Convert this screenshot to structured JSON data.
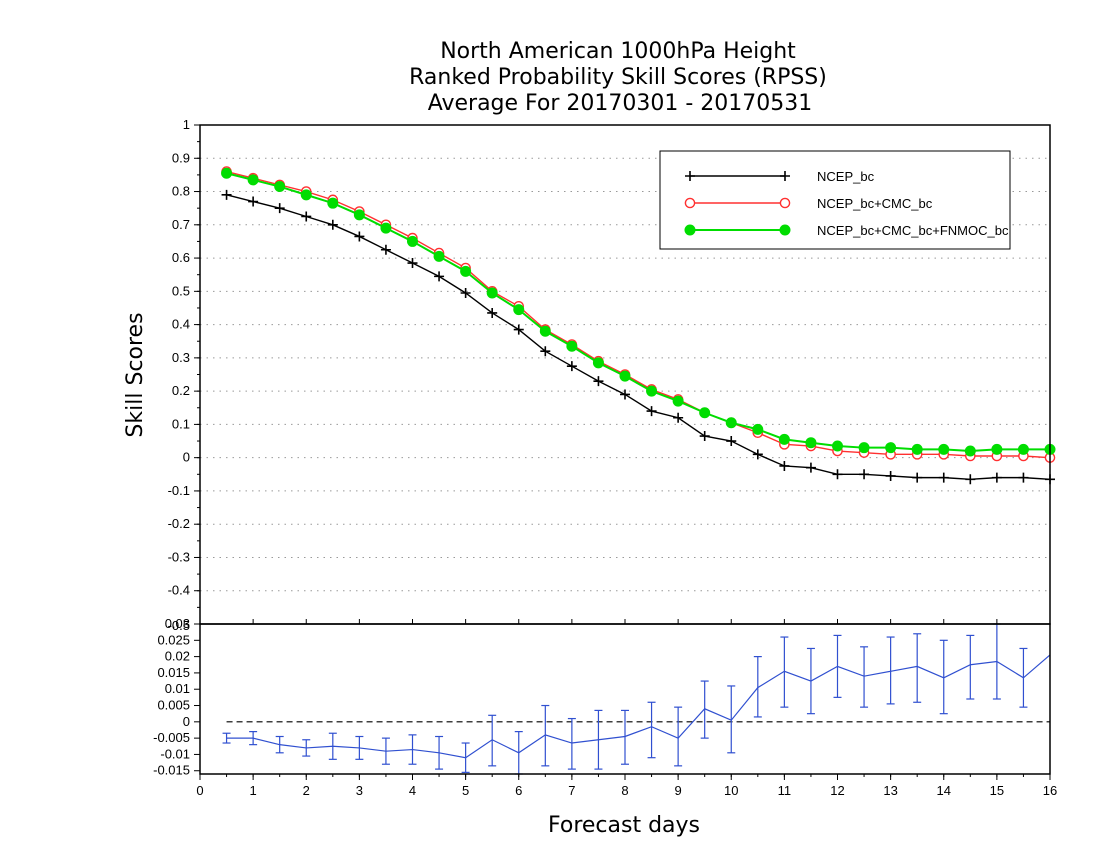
{
  "chart_data": [
    {
      "panel": "main",
      "type": "line",
      "title": [
        "North American 1000hPa Height",
        "Ranked Probability Skill Scores (RPSS)",
        "Average For 20170301 - 20170531"
      ],
      "xlabel": "Forecast days",
      "ylabel": "Skill Scores",
      "xlim": [
        0,
        16
      ],
      "ylim": [
        -0.5,
        1
      ],
      "x_ticks": [
        "0",
        "1",
        "2",
        "3",
        "4",
        "5",
        "6",
        "7",
        "8",
        "9",
        "10",
        "11",
        "12",
        "13",
        "14",
        "15",
        "16"
      ],
      "y_ticks": [
        "1",
        "0.9",
        "0.8",
        "0.7",
        "0.6",
        "0.5",
        "0.4",
        "0.3",
        "0.2",
        "0.1",
        "0",
        "-0.1",
        "-0.2",
        "-0.3",
        "-0.4"
      ],
      "grid": "dotted horizontal",
      "legend_position": "top-right",
      "x": [
        0.5,
        1,
        1.5,
        2,
        2.5,
        3,
        3.5,
        4,
        4.5,
        5,
        5.5,
        6,
        6.5,
        7,
        7.5,
        8,
        8.5,
        9,
        9.5,
        10,
        10.5,
        11,
        11.5,
        12,
        12.5,
        13,
        13.5,
        14,
        14.5,
        15,
        15.5,
        16
      ],
      "series": [
        {
          "name": "NCEP_bc",
          "color": "#000000",
          "marker": "plus",
          "values": [
            0.79,
            0.77,
            0.75,
            0.725,
            0.7,
            0.665,
            0.625,
            0.585,
            0.545,
            0.495,
            0.435,
            0.385,
            0.32,
            0.275,
            0.23,
            0.19,
            0.14,
            0.12,
            0.065,
            0.05,
            0.01,
            -0.025,
            -0.03,
            -0.05,
            -0.05,
            -0.055,
            -0.06,
            -0.06,
            -0.065,
            -0.06,
            -0.06,
            -0.065
          ]
        },
        {
          "name": "NCEP_bc+CMC_bc",
          "color": "#ff3030",
          "marker": "open-circle",
          "values": [
            0.86,
            0.84,
            0.82,
            0.8,
            0.775,
            0.74,
            0.7,
            0.66,
            0.615,
            0.57,
            0.5,
            0.455,
            0.385,
            0.34,
            0.29,
            0.25,
            0.205,
            0.175,
            0.135,
            0.105,
            0.075,
            0.04,
            0.035,
            0.02,
            0.015,
            0.01,
            0.01,
            0.01,
            0.005,
            0.005,
            0.005,
            0.0
          ]
        },
        {
          "name": "NCEP_bc+CMC_bc+FNMOC_bc",
          "color": "#00dd00",
          "marker": "filled-circle",
          "values": [
            0.855,
            0.835,
            0.815,
            0.79,
            0.765,
            0.73,
            0.69,
            0.65,
            0.605,
            0.56,
            0.495,
            0.445,
            0.38,
            0.335,
            0.285,
            0.245,
            0.2,
            0.17,
            0.135,
            0.105,
            0.085,
            0.055,
            0.045,
            0.035,
            0.03,
            0.03,
            0.025,
            0.025,
            0.02,
            0.025,
            0.025,
            0.025
          ]
        }
      ]
    },
    {
      "panel": "difference",
      "type": "line",
      "xlim": [
        0,
        16
      ],
      "ylim": [
        -0.016,
        0.03
      ],
      "x_ticks": [
        "0",
        "1",
        "2",
        "3",
        "4",
        "5",
        "6",
        "7",
        "8",
        "9",
        "10",
        "11",
        "12",
        "13",
        "14",
        "15",
        "16"
      ],
      "y_ticks": [
        "0.03",
        "0.025",
        "0.02",
        "0.015",
        "0.01",
        "0.005",
        "0",
        "-0.005",
        "-0.01",
        "-0.015"
      ],
      "y_overlap_label": "-0.5",
      "zero_line": "dashed",
      "x": [
        0.5,
        1,
        1.5,
        2,
        2.5,
        3,
        3.5,
        4,
        4.5,
        5,
        5.5,
        6,
        6.5,
        7,
        7.5,
        8,
        8.5,
        9,
        9.5,
        10,
        10.5,
        11,
        11.5,
        12,
        12.5,
        13,
        13.5,
        14,
        14.5,
        15,
        15.5,
        16
      ],
      "series": [
        {
          "color": "#3050d0",
          "marker": "error-bars",
          "values": [
            -0.005,
            -0.005,
            -0.007,
            -0.008,
            -0.0075,
            -0.008,
            -0.009,
            -0.0085,
            -0.0095,
            -0.011,
            -0.0055,
            -0.0095,
            -0.004,
            -0.0065,
            -0.0055,
            -0.0045,
            -0.0015,
            -0.005,
            0.004,
            0.0005,
            0.0105,
            0.0155,
            0.0125,
            0.017,
            0.014,
            0.0155,
            0.017,
            0.0135,
            0.0175,
            0.0185,
            0.0135,
            0.0205
          ],
          "err_low": [
            -0.0065,
            -0.007,
            -0.0095,
            -0.0105,
            -0.0115,
            -0.0115,
            -0.013,
            -0.013,
            -0.0145,
            -0.0155,
            -0.0135,
            -0.016,
            -0.0135,
            -0.0145,
            -0.0145,
            -0.013,
            -0.011,
            -0.0135,
            -0.005,
            -0.0095,
            0.0015,
            0.0045,
            0.0025,
            0.0075,
            0.0045,
            0.0055,
            0.006,
            0.0025,
            0.007,
            0.007,
            0.0045,
            0.0205
          ],
          "err_high": [
            -0.0035,
            -0.003,
            -0.0045,
            -0.0055,
            -0.0035,
            -0.0045,
            -0.005,
            -0.004,
            -0.0045,
            -0.0065,
            0.002,
            -0.003,
            0.005,
            0.001,
            0.0035,
            0.0035,
            0.006,
            0.0045,
            0.0125,
            0.011,
            0.02,
            0.026,
            0.0225,
            0.0265,
            0.023,
            0.026,
            0.027,
            0.025,
            0.0265,
            0.03,
            0.0225,
            0.0205
          ]
        }
      ]
    }
  ]
}
